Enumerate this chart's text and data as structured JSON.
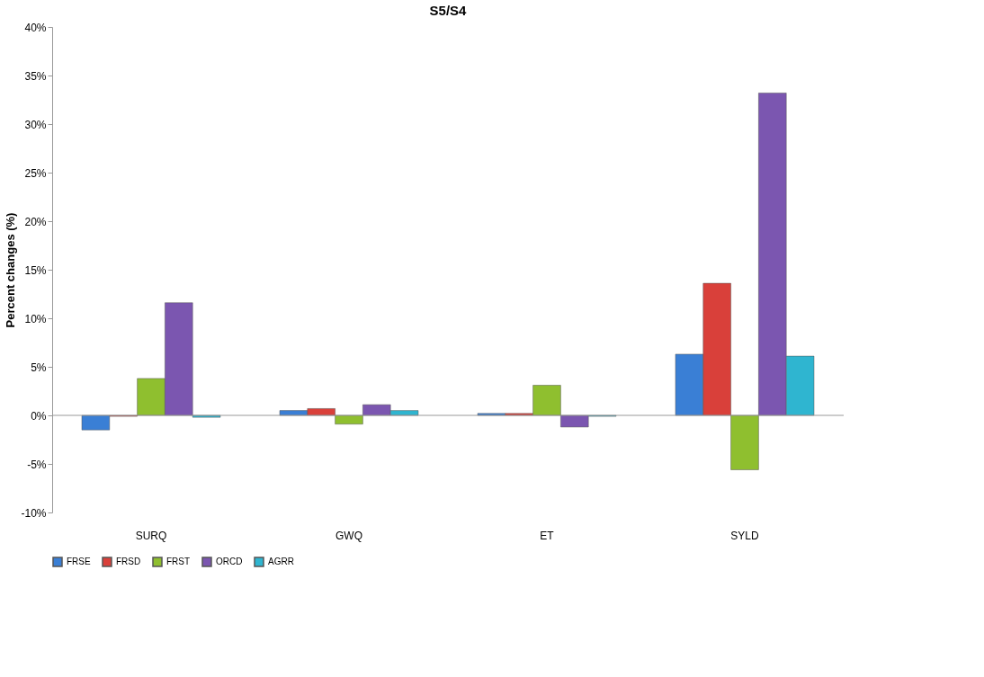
{
  "chart_data": {
    "type": "bar",
    "title": "S5/S4",
    "ylabel": "Percent changes (%)",
    "categories": [
      "SURQ",
      "GWQ",
      "ET",
      "SYLD"
    ],
    "series": [
      {
        "name": "FRSE",
        "color": "#3a7fd5",
        "values": [
          -1.5,
          0.5,
          0.2,
          6.3
        ]
      },
      {
        "name": "FRSD",
        "color": "#d9403a",
        "values": [
          -0.1,
          0.7,
          0.2,
          13.6
        ]
      },
      {
        "name": "FRST",
        "color": "#8fbf2f",
        "values": [
          3.8,
          -0.9,
          3.1,
          -5.6
        ]
      },
      {
        "name": "ORCD",
        "color": "#7b56b0",
        "values": [
          11.6,
          1.1,
          -1.2,
          33.2
        ]
      },
      {
        "name": "AGRR",
        "color": "#2fb5d0",
        "values": [
          -0.2,
          0.5,
          -0.1,
          6.1
        ]
      }
    ],
    "ylim": [
      -10,
      40
    ],
    "yticks": [
      {
        "value": -10,
        "label": "-10%"
      },
      {
        "value": -5,
        "label": "-5%"
      },
      {
        "value": 0,
        "label": "0%"
      },
      {
        "value": 5,
        "label": "5%"
      },
      {
        "value": 10,
        "label": "10%"
      },
      {
        "value": 15,
        "label": "15%"
      },
      {
        "value": 20,
        "label": "20%"
      },
      {
        "value": 25,
        "label": "25%"
      },
      {
        "value": 30,
        "label": "30%"
      },
      {
        "value": 35,
        "label": "35%"
      },
      {
        "value": 40,
        "label": "40%"
      }
    ],
    "ref_lines": [
      {
        "axis": "y",
        "value": 0,
        "color": "#999999"
      }
    ],
    "grid": false,
    "legend": "bottom"
  }
}
